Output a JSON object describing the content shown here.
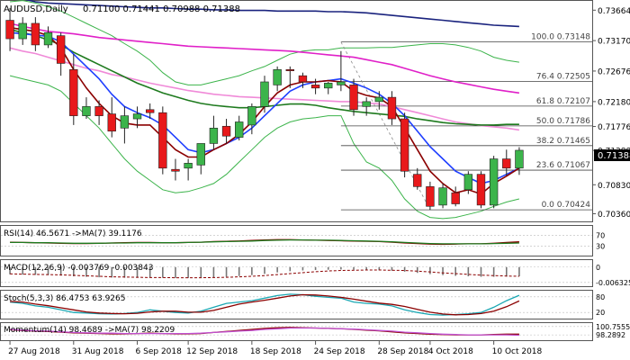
{
  "header": {
    "symbol": "AUDUSD,Daily",
    "ohlc": "0.71100 0.71441 0.70988 0.71388"
  },
  "current_price_label": "0.71388",
  "colors": {
    "bull": "#3cb44b",
    "bear": "#e8191b",
    "ma_dark": "#1a237e",
    "ma_magenta": "#e020c8",
    "ma_pink": "#f08ad8",
    "ma_green": "#1e7a1e",
    "ma_blue": "#1f3fff",
    "ma_darkred": "#8b0000",
    "bollinger": "#3cb44b",
    "fib": "#444444"
  },
  "chart_data": [
    {
      "type": "candlestick",
      "title": "AUDUSD,Daily",
      "x_ticks": [
        "27 Aug 2018",
        "31 Aug 2018",
        "6 Sep 2018",
        "12 Sep 2018",
        "18 Sep 2018",
        "24 Sep 2018",
        "28 Sep 2018",
        "4 Oct 2018",
        "10 Oct 2018"
      ],
      "y_ticks": [
        "0.73664",
        "0.73170",
        "0.72676",
        "0.72180",
        "0.71776",
        "0.71388",
        "0.70830",
        "0.70360"
      ],
      "ylim": [
        0.7025,
        0.738
      ],
      "candles": [
        {
          "o": 0.735,
          "h": 0.737,
          "l": 0.73,
          "c": 0.732
        },
        {
          "o": 0.732,
          "h": 0.7355,
          "l": 0.731,
          "c": 0.7345
        },
        {
          "o": 0.7345,
          "h": 0.7355,
          "l": 0.73,
          "c": 0.731
        },
        {
          "o": 0.731,
          "h": 0.734,
          "l": 0.7305,
          "c": 0.733
        },
        {
          "o": 0.7325,
          "h": 0.733,
          "l": 0.726,
          "c": 0.728
        },
        {
          "o": 0.727,
          "h": 0.7295,
          "l": 0.718,
          "c": 0.7195
        },
        {
          "o": 0.7195,
          "h": 0.7225,
          "l": 0.719,
          "c": 0.721
        },
        {
          "o": 0.721,
          "h": 0.722,
          "l": 0.718,
          "c": 0.7195
        },
        {
          "o": 0.7198,
          "h": 0.7225,
          "l": 0.716,
          "c": 0.717
        },
        {
          "o": 0.7175,
          "h": 0.721,
          "l": 0.715,
          "c": 0.7195
        },
        {
          "o": 0.719,
          "h": 0.721,
          "l": 0.7175,
          "c": 0.7198
        },
        {
          "o": 0.7205,
          "h": 0.7215,
          "l": 0.719,
          "c": 0.72
        },
        {
          "o": 0.72,
          "h": 0.721,
          "l": 0.71,
          "c": 0.711
        },
        {
          "o": 0.7108,
          "h": 0.7125,
          "l": 0.709,
          "c": 0.7105
        },
        {
          "o": 0.711,
          "h": 0.7125,
          "l": 0.709,
          "c": 0.7118
        },
        {
          "o": 0.7115,
          "h": 0.715,
          "l": 0.71,
          "c": 0.715
        },
        {
          "o": 0.715,
          "h": 0.7195,
          "l": 0.714,
          "c": 0.7175
        },
        {
          "o": 0.7178,
          "h": 0.719,
          "l": 0.715,
          "c": 0.7162
        },
        {
          "o": 0.716,
          "h": 0.7195,
          "l": 0.7155,
          "c": 0.7185
        },
        {
          "o": 0.718,
          "h": 0.7215,
          "l": 0.7165,
          "c": 0.721
        },
        {
          "o": 0.721,
          "h": 0.726,
          "l": 0.72,
          "c": 0.725
        },
        {
          "o": 0.7245,
          "h": 0.7275,
          "l": 0.7235,
          "c": 0.727
        },
        {
          "o": 0.727,
          "h": 0.7275,
          "l": 0.724,
          "c": 0.7268
        },
        {
          "o": 0.726,
          "h": 0.7265,
          "l": 0.724,
          "c": 0.725
        },
        {
          "o": 0.7245,
          "h": 0.7255,
          "l": 0.723,
          "c": 0.724
        },
        {
          "o": 0.724,
          "h": 0.725,
          "l": 0.723,
          "c": 0.7248
        },
        {
          "o": 0.7245,
          "h": 0.73,
          "l": 0.7235,
          "c": 0.725
        },
        {
          "o": 0.7245,
          "h": 0.7255,
          "l": 0.7195,
          "c": 0.7205
        },
        {
          "o": 0.721,
          "h": 0.7225,
          "l": 0.7195,
          "c": 0.7218
        },
        {
          "o": 0.7218,
          "h": 0.7235,
          "l": 0.7205,
          "c": 0.7225
        },
        {
          "o": 0.7225,
          "h": 0.7235,
          "l": 0.718,
          "c": 0.719
        },
        {
          "o": 0.719,
          "h": 0.72,
          "l": 0.7095,
          "c": 0.7105
        },
        {
          "o": 0.71,
          "h": 0.711,
          "l": 0.7075,
          "c": 0.708
        },
        {
          "o": 0.708,
          "h": 0.7088,
          "l": 0.7042,
          "c": 0.7048
        },
        {
          "o": 0.705,
          "h": 0.7085,
          "l": 0.7045,
          "c": 0.7078
        },
        {
          "o": 0.707,
          "h": 0.708,
          "l": 0.7048,
          "c": 0.7052
        },
        {
          "o": 0.7075,
          "h": 0.7105,
          "l": 0.7068,
          "c": 0.71
        },
        {
          "o": 0.71,
          "h": 0.7105,
          "l": 0.7045,
          "c": 0.705
        },
        {
          "o": 0.705,
          "h": 0.713,
          "l": 0.7045,
          "c": 0.7125
        },
        {
          "o": 0.7125,
          "h": 0.714,
          "l": 0.7098,
          "c": 0.711
        },
        {
          "o": 0.711,
          "h": 0.7144,
          "l": 0.7099,
          "c": 0.7139
        }
      ],
      "moving_averages": [
        {
          "color_key": "ma_dark",
          "values": [
            0.739,
            0.7385,
            0.738,
            0.7378,
            0.7377,
            0.7376,
            0.7375,
            0.7374,
            0.7373,
            0.7372,
            0.7371,
            0.737,
            0.737,
            0.7369,
            0.7368,
            0.7368,
            0.7367,
            0.7367,
            0.7366,
            0.7366,
            0.7366,
            0.7365,
            0.7365,
            0.7365,
            0.7365,
            0.7364,
            0.7364,
            0.7363,
            0.7362,
            0.736,
            0.7358,
            0.7356,
            0.7354,
            0.7352,
            0.735,
            0.7348,
            0.7346,
            0.7344,
            0.7342,
            0.7341,
            0.734
          ]
        },
        {
          "color_key": "ma_magenta",
          "values": [
            0.7345,
            0.734,
            0.7336,
            0.7332,
            0.733,
            0.7328,
            0.7325,
            0.7322,
            0.732,
            0.7318,
            0.7316,
            0.7314,
            0.7312,
            0.731,
            0.7308,
            0.7307,
            0.7306,
            0.7305,
            0.7304,
            0.7303,
            0.7302,
            0.7301,
            0.73,
            0.7298,
            0.7296,
            0.7294,
            0.7292,
            0.729,
            0.7286,
            0.7282,
            0.7278,
            0.7272,
            0.7266,
            0.726,
            0.7255,
            0.725,
            0.7246,
            0.7242,
            0.7238,
            0.7235,
            0.7232
          ]
        },
        {
          "color_key": "ma_pink",
          "values": [
            0.7305,
            0.73,
            0.7296,
            0.729,
            0.7284,
            0.7278,
            0.7272,
            0.7268,
            0.7262,
            0.7258,
            0.7253,
            0.7248,
            0.7244,
            0.724,
            0.7236,
            0.7233,
            0.723,
            0.7228,
            0.7226,
            0.7225,
            0.7224,
            0.7223,
            0.7222,
            0.7221,
            0.722,
            0.7219,
            0.7218,
            0.7218,
            0.7216,
            0.7214,
            0.721,
            0.7205,
            0.72,
            0.7195,
            0.719,
            0.7185,
            0.7182,
            0.7179,
            0.7177,
            0.7175,
            0.7172
          ]
        },
        {
          "color_key": "ma_green",
          "values": [
            0.7335,
            0.733,
            0.7325,
            0.7318,
            0.731,
            0.7298,
            0.7288,
            0.7278,
            0.7268,
            0.7258,
            0.7248,
            0.724,
            0.7232,
            0.7226,
            0.722,
            0.7215,
            0.7212,
            0.721,
            0.7208,
            0.7208,
            0.721,
            0.7212,
            0.7214,
            0.7214,
            0.7212,
            0.7208,
            0.7205,
            0.7202,
            0.72,
            0.7198,
            0.7196,
            0.7194,
            0.719,
            0.7187,
            0.7184,
            0.7182,
            0.7181,
            0.718,
            0.718,
            0.7181,
            0.7181
          ]
        },
        {
          "color_key": "ma_blue",
          "values": [
            0.733,
            0.7328,
            0.7326,
            0.7324,
            0.7315,
            0.7295,
            0.7275,
            0.7255,
            0.723,
            0.721,
            0.72,
            0.7192,
            0.718,
            0.716,
            0.714,
            0.7135,
            0.714,
            0.715,
            0.716,
            0.7175,
            0.7195,
            0.7215,
            0.7235,
            0.7245,
            0.725,
            0.7252,
            0.7255,
            0.7248,
            0.724,
            0.723,
            0.7215,
            0.7195,
            0.717,
            0.7145,
            0.7125,
            0.7105,
            0.7095,
            0.7085,
            0.709,
            0.71,
            0.711
          ]
        },
        {
          "color_key": "ma_darkred",
          "values": [
            0.7338,
            0.7335,
            0.7332,
            0.7325,
            0.7305,
            0.727,
            0.724,
            0.7215,
            0.7195,
            0.7183,
            0.718,
            0.718,
            0.716,
            0.714,
            0.7128,
            0.7128,
            0.714,
            0.715,
            0.7165,
            0.7185,
            0.721,
            0.7232,
            0.7245,
            0.725,
            0.725,
            0.7252,
            0.725,
            0.7235,
            0.7228,
            0.7224,
            0.721,
            0.7175,
            0.714,
            0.7105,
            0.7085,
            0.707,
            0.7075,
            0.7068,
            0.7085,
            0.7097,
            0.711
          ]
        }
      ],
      "bollinger": {
        "upper": [
          0.738,
          0.7382,
          0.7378,
          0.7372,
          0.7365,
          0.7355,
          0.7345,
          0.7335,
          0.7325,
          0.7312,
          0.73,
          0.7285,
          0.7265,
          0.725,
          0.7245,
          0.7245,
          0.725,
          0.7255,
          0.726,
          0.7268,
          0.7275,
          0.7285,
          0.7295,
          0.73,
          0.7302,
          0.7302,
          0.7305,
          0.7305,
          0.7305,
          0.7306,
          0.7306,
          0.7308,
          0.731,
          0.7312,
          0.7312,
          0.731,
          0.7306,
          0.73,
          0.729,
          0.7285,
          0.7282
        ],
        "lower": [
          0.726,
          0.7255,
          0.725,
          0.7245,
          0.7235,
          0.7215,
          0.7195,
          0.7175,
          0.715,
          0.7125,
          0.7105,
          0.709,
          0.7075,
          0.707,
          0.7072,
          0.7078,
          0.7085,
          0.71,
          0.712,
          0.714,
          0.716,
          0.7175,
          0.7185,
          0.719,
          0.7192,
          0.7195,
          0.7195,
          0.715,
          0.712,
          0.711,
          0.709,
          0.706,
          0.704,
          0.703,
          0.7028,
          0.703,
          0.7035,
          0.704,
          0.7048,
          0.7055,
          0.706
        ]
      },
      "fibonacci": [
        {
          "label": "100.0 0.73148",
          "level": 0.73148
        },
        {
          "label": "76.4 0.72505",
          "level": 0.72505
        },
        {
          "label": "61.8 0.72107",
          "level": 0.72107
        },
        {
          "label": "50.0 0.71786",
          "level": 0.71786
        },
        {
          "label": "38.2 0.71465",
          "level": 0.71465
        },
        {
          "label": "23.6 0.71067",
          "level": 0.71067
        },
        {
          "label": "0.0 0.70424",
          "level": 0.70424
        }
      ]
    },
    {
      "type": "line",
      "title": "RSI(14) 46.5671  ->MA(7) 39.1176",
      "y_ticks": [
        "70",
        "30"
      ],
      "ylim": [
        0,
        100
      ],
      "series": [
        {
          "color": "#8b0000",
          "values": [
            45,
            44,
            43,
            42,
            41,
            40,
            40,
            41,
            42,
            43,
            44,
            44,
            43,
            43,
            44,
            45,
            47,
            48,
            49,
            51,
            53,
            54,
            54,
            53,
            52,
            51,
            50,
            49,
            48,
            47,
            45,
            42,
            40,
            38,
            37,
            38,
            39,
            39,
            41,
            44,
            46
          ]
        },
        {
          "color": "#1e7a1e",
          "values": [
            44,
            44,
            43,
            43,
            42,
            41,
            41,
            41,
            42,
            42,
            43,
            43,
            43,
            43,
            44,
            45,
            46,
            47,
            48,
            49,
            51,
            52,
            53,
            53,
            52,
            52,
            51,
            50,
            49,
            48,
            46,
            44,
            42,
            40,
            39,
            39,
            39,
            39,
            40,
            41,
            42
          ]
        }
      ]
    },
    {
      "type": "bar",
      "title": "MACD(12,26,9) -0.003769 -0.003843",
      "y_ticks": [
        "0",
        "-0.006325"
      ],
      "ylim": [
        -0.0075,
        0.0025
      ],
      "values": [
        -0.003,
        -0.0031,
        -0.0032,
        -0.0033,
        -0.0035,
        -0.0038,
        -0.004,
        -0.0042,
        -0.0043,
        -0.0044,
        -0.0044,
        -0.0043,
        -0.0044,
        -0.0045,
        -0.0045,
        -0.0044,
        -0.0042,
        -0.004,
        -0.0037,
        -0.0033,
        -0.0028,
        -0.0022,
        -0.0017,
        -0.0014,
        -0.0012,
        -0.0011,
        -0.001,
        -0.0011,
        -0.0012,
        -0.0013,
        -0.0015,
        -0.0019,
        -0.0024,
        -0.0029,
        -0.0033,
        -0.0036,
        -0.0038,
        -0.004,
        -0.004,
        -0.0039,
        -0.0038
      ],
      "signal": [
        -0.0028,
        -0.0029,
        -0.003,
        -0.0031,
        -0.0032,
        -0.0034,
        -0.0036,
        -0.0038,
        -0.004,
        -0.0041,
        -0.0042,
        -0.0043,
        -0.0043,
        -0.0044,
        -0.0044,
        -0.0044,
        -0.0043,
        -0.0042,
        -0.004,
        -0.0038,
        -0.0035,
        -0.0031,
        -0.0027,
        -0.0023,
        -0.0019,
        -0.0016,
        -0.0014,
        -0.0013,
        -0.0012,
        -0.0012,
        -0.0013,
        -0.0014,
        -0.0017,
        -0.002,
        -0.0024,
        -0.0027,
        -0.003,
        -0.0033,
        -0.0035,
        -0.0037,
        -0.0038
      ]
    },
    {
      "type": "line",
      "title": "Stoch(5,3,3) 86.4753 63.9265",
      "y_ticks": [
        "80",
        "20"
      ],
      "ylim": [
        0,
        100
      ],
      "series": [
        {
          "color": "#1aa7b3",
          "values": [
            60,
            55,
            45,
            40,
            30,
            20,
            18,
            15,
            14,
            16,
            20,
            30,
            25,
            20,
            18,
            25,
            40,
            55,
            60,
            65,
            75,
            85,
            90,
            88,
            82,
            78,
            75,
            60,
            55,
            52,
            45,
            30,
            20,
            12,
            10,
            12,
            15,
            20,
            40,
            65,
            86
          ]
        },
        {
          "color": "#8b0000",
          "values": [
            62,
            60,
            52,
            46,
            38,
            30,
            22,
            18,
            16,
            15,
            17,
            22,
            25,
            25,
            21,
            21,
            28,
            40,
            52,
            60,
            67,
            75,
            83,
            88,
            87,
            83,
            78,
            71,
            63,
            56,
            51,
            43,
            32,
            21,
            14,
            11,
            12,
            16,
            25,
            42,
            64
          ]
        }
      ]
    },
    {
      "type": "line",
      "title": "Momentum(14) 98.4689  ->MA(7) 98.2209",
      "y_ticks": [
        "100.7555",
        "98.2892"
      ],
      "ylim": [
        97.0,
        101.5
      ],
      "series": [
        {
          "color": "#8b0000",
          "values": [
            99.8,
            99.6,
            99.4,
            99.3,
            99.1,
            98.9,
            98.8,
            98.7,
            98.6,
            98.6,
            98.7,
            98.8,
            98.7,
            98.6,
            98.6,
            98.7,
            99.0,
            99.3,
            99.6,
            99.9,
            100.2,
            100.4,
            100.5,
            100.4,
            100.3,
            100.2,
            100.1,
            99.9,
            99.7,
            99.5,
            99.2,
            98.9,
            98.7,
            98.5,
            98.4,
            98.3,
            98.3,
            98.3,
            98.4,
            98.5,
            98.5
          ]
        },
        {
          "color": "#c04fd0",
          "values": [
            99.9,
            99.7,
            99.5,
            99.4,
            99.2,
            99.0,
            98.9,
            98.8,
            98.8,
            98.7,
            98.7,
            98.7,
            98.7,
            98.7,
            98.7,
            98.8,
            99.0,
            99.2,
            99.4,
            99.6,
            99.9,
            100.1,
            100.3,
            100.3,
            100.3,
            100.2,
            100.1,
            100.0,
            99.8,
            99.6,
            99.4,
            99.1,
            98.9,
            98.7,
            98.5,
            98.4,
            98.3,
            98.3,
            98.3,
            98.3,
            98.2
          ]
        }
      ]
    }
  ]
}
